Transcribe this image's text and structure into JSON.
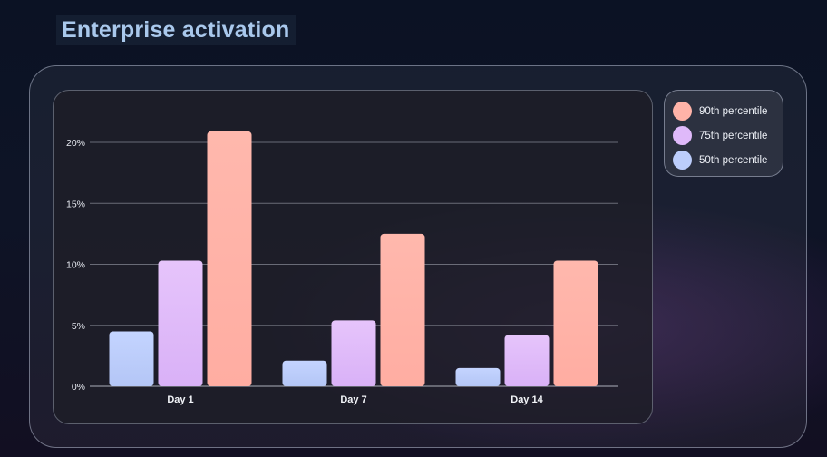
{
  "page": {
    "title": "Enterprise activation"
  },
  "chart_data": {
    "type": "bar",
    "title": "Enterprise activation",
    "xlabel": "",
    "ylabel": "",
    "categories": [
      "Day 1",
      "Day 7",
      "Day 14"
    ],
    "yticks": [
      0,
      5,
      10,
      15,
      20
    ],
    "ytick_labels": [
      "0%",
      "5%",
      "10%",
      "15%",
      "20%"
    ],
    "ylim": [
      0,
      20
    ],
    "grid": true,
    "legend_position": "right",
    "series": [
      {
        "name": "50th percentile",
        "values": [
          4.5,
          2.1,
          1.5
        ],
        "color_top": "#c4d4ff",
        "color_bottom": "#b4c6f6"
      },
      {
        "name": "75th percentile",
        "values": [
          10.3,
          5.4,
          4.2
        ],
        "color_top": "#e6c4fb",
        "color_bottom": "#d9b1f7"
      },
      {
        "name": "90th percentile",
        "values": [
          20.9,
          12.5,
          10.3
        ],
        "color_top": "#ffb8ad",
        "color_bottom": "#ffada2"
      }
    ],
    "legend": [
      {
        "label": "90th percentile",
        "color": "#ffb3a8"
      },
      {
        "label": "75th percentile",
        "color": "#dfb9fa"
      },
      {
        "label": "50th percentile",
        "color": "#bccdfb"
      }
    ]
  }
}
